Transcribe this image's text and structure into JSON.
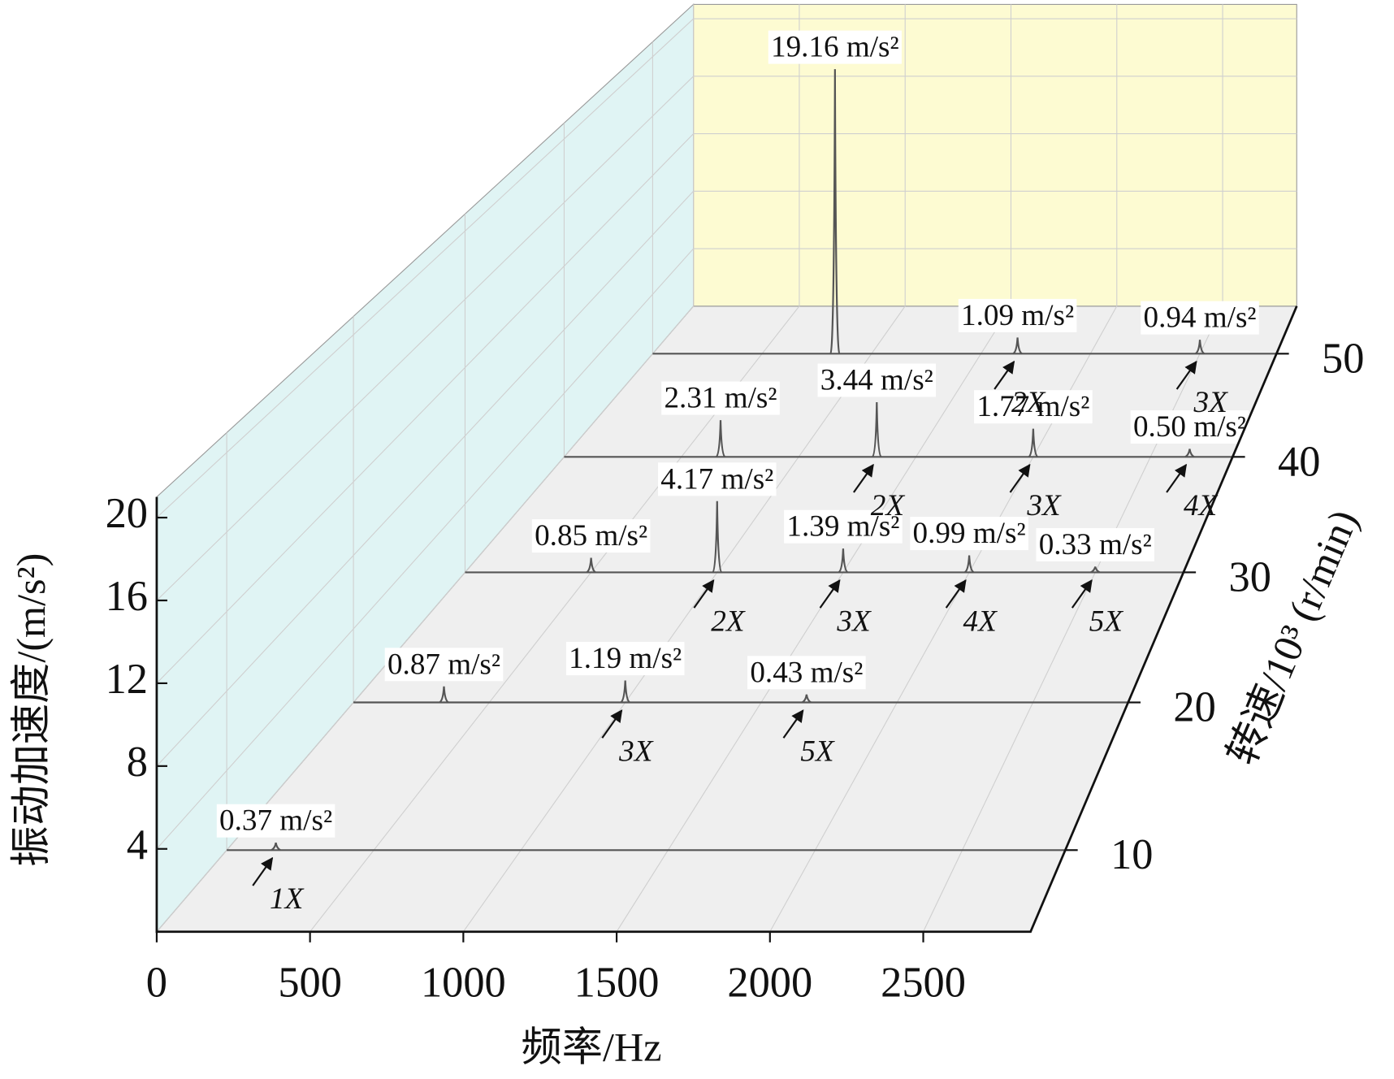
{
  "chart_data": {
    "type": "waterfall",
    "x_label": "频率/Hz",
    "y_label": "转速/10³ (r/min)",
    "z_label": "振动加速度/(m/s²)",
    "xlim": [
      0,
      2850
    ],
    "xticks": [
      0,
      500,
      1000,
      1500,
      2000,
      2500
    ],
    "ylim": [
      5,
      55
    ],
    "yticks": [
      10,
      20,
      30,
      40,
      50
    ],
    "zlim": [
      0,
      21
    ],
    "zticks": [
      4,
      8,
      12,
      16,
      20
    ],
    "grid": true,
    "colors": {
      "floor": "#efefef",
      "side_wall": "#e0f4f4",
      "back_wall": "#fdfbd2",
      "line": "#555555"
    },
    "series": [
      {
        "speed": 10,
        "freq": [
          167
        ],
        "values": [
          0.37
        ],
        "value_labels": [
          "0.37 m/s²"
        ],
        "orders": [
          "1X"
        ]
      },
      {
        "speed": 20,
        "freq": [
          333,
          1000,
          1667
        ],
        "values": [
          0.87,
          1.19,
          0.43
        ],
        "value_labels": [
          "0.87 m/s²",
          "1.19 m/s²",
          "0.43 m/s²"
        ],
        "orders": [
          null,
          "3X",
          "5X"
        ]
      },
      {
        "speed": 30,
        "freq": [
          500,
          1000,
          1500,
          2000,
          2500
        ],
        "values": [
          0.85,
          4.17,
          1.39,
          0.99,
          0.33
        ],
        "value_labels": [
          "0.85 m/s²",
          "4.17 m/s²",
          "1.39 m/s²",
          "0.99 m/s²",
          "0.33 m/s²"
        ],
        "orders": [
          null,
          "2X",
          "3X",
          "4X",
          "5X"
        ]
      },
      {
        "speed": 40,
        "freq": [
          667,
          1333,
          2000,
          2667
        ],
        "values": [
          2.31,
          3.44,
          1.77,
          0.5
        ],
        "value_labels": [
          "2.31 m/s²",
          "3.44 m/s²",
          "1.77 m/s²",
          "0.50 m/s²"
        ],
        "orders": [
          null,
          "2X",
          "3X",
          "4X"
        ]
      },
      {
        "speed": 50,
        "freq": [
          833,
          1667,
          2500
        ],
        "values": [
          19.16,
          1.09,
          0.94
        ],
        "value_labels": [
          "19.16 m/s²",
          "1.09 m/s²",
          "0.94 m/s²"
        ],
        "orders": [
          null,
          "2X",
          "3X"
        ]
      }
    ]
  }
}
